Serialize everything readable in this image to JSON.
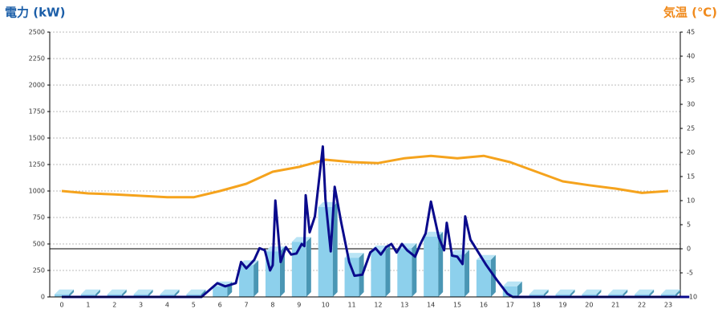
{
  "chart_data": {
    "type": "bar",
    "y_label": "電力 (kW)",
    "y2_label": "気温 (℃)",
    "categories": [
      "0",
      "1",
      "2",
      "3",
      "4",
      "5",
      "6",
      "7",
      "8",
      "9",
      "10",
      "11",
      "12",
      "13",
      "14",
      "15",
      "16",
      "17",
      "18",
      "19",
      "20",
      "21",
      "22",
      "23"
    ],
    "ylim": [
      0,
      2500
    ],
    "yticks": [
      0,
      250,
      500,
      750,
      1000,
      1250,
      1500,
      1750,
      2000,
      2250,
      2500
    ],
    "y2lim": [
      -10,
      45
    ],
    "y2ticks": [
      -10,
      -5,
      0,
      5,
      10,
      15,
      20,
      25,
      30,
      35,
      40,
      45
    ],
    "grid": true,
    "series": [
      {
        "type": "bar",
        "color": "#8dd0ec",
        "values": [
          25,
          25,
          25,
          25,
          25,
          25,
          100,
          300,
          430,
          520,
          850,
          370,
          440,
          460,
          570,
          400,
          350,
          100,
          25,
          25,
          25,
          25,
          25,
          25
        ]
      },
      {
        "type": "line",
        "axis": "y2",
        "color": "#f5a31d",
        "values": [
          12,
          11.5,
          11.3,
          11,
          10.7,
          10.7,
          12,
          13.5,
          16,
          17,
          18.5,
          18,
          17.8,
          18.8,
          19.3,
          18.8,
          19.3,
          18,
          16,
          14,
          13.2,
          12.5,
          11.6,
          12
        ]
      },
      {
        "type": "line",
        "color": "#0a0a8c",
        "x": [
          0,
          5.3,
          5.9,
          6.2,
          6.6,
          6.8,
          7.0,
          7.3,
          7.5,
          7.7,
          7.9,
          8.0,
          8.1,
          8.3,
          8.5,
          8.7,
          8.9,
          9.1,
          9.2,
          9.25,
          9.4,
          9.6,
          9.9,
          10.0,
          10.2,
          10.35,
          10.6,
          10.9,
          11.1,
          11.4,
          11.7,
          11.9,
          12.1,
          12.3,
          12.5,
          12.7,
          12.9,
          13.1,
          13.4,
          13.6,
          13.8,
          14.0,
          14.3,
          14.5,
          14.6,
          14.8,
          15.0,
          15.2,
          15.3,
          15.5,
          15.8,
          16.1,
          16.5,
          16.9,
          17.1,
          23.8
        ],
        "values": [
          0,
          0,
          130,
          100,
          130,
          330,
          270,
          350,
          460,
          440,
          250,
          300,
          910,
          330,
          470,
          400,
          410,
          500,
          480,
          960,
          610,
          760,
          1420,
          920,
          430,
          1040,
          700,
          330,
          200,
          210,
          420,
          460,
          400,
          470,
          500,
          420,
          500,
          440,
          380,
          500,
          600,
          900,
          560,
          440,
          700,
          390,
          380,
          310,
          760,
          540,
          420,
          300,
          160,
          30,
          0,
          0
        ]
      }
    ]
  }
}
